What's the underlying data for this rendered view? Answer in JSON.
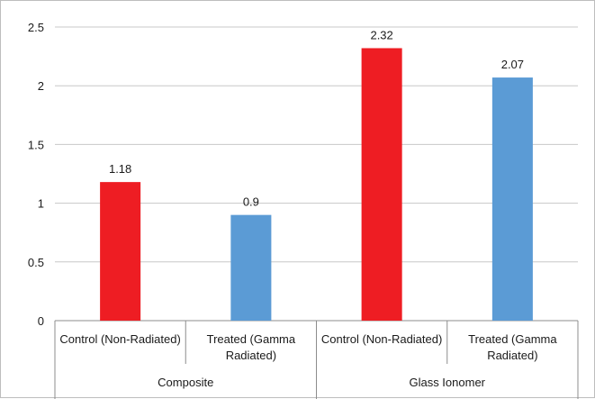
{
  "chart_data": {
    "type": "bar",
    "title": "",
    "xlabel": "",
    "ylabel": "",
    "ylim": [
      0,
      2.5
    ],
    "yticks": [
      "0",
      "0.5",
      "1",
      "1.5",
      "2",
      "2.5"
    ],
    "grid": true,
    "legend": "none",
    "groups": [
      {
        "name": "Composite",
        "bars": [
          {
            "category": "Control (Non-Radiated)",
            "lines": [
              "Control (Non-Radiated)"
            ],
            "value": 1.18,
            "label": "1.18",
            "color": "#ee1d23"
          },
          {
            "category": "Treated (Gamma Radiated)",
            "lines": [
              "Treated (Gamma",
              "Radiated)"
            ],
            "value": 0.9,
            "label": "0.9",
            "color": "#5b9bd5"
          }
        ]
      },
      {
        "name": "Glass Ionomer",
        "bars": [
          {
            "category": "Control (Non-Radiated)",
            "lines": [
              "Control (Non-Radiated)"
            ],
            "value": 2.32,
            "label": "2.32",
            "color": "#ee1d23"
          },
          {
            "category": "Treated (Gamma Radiated)",
            "lines": [
              "Treated (Gamma",
              "Radiated)"
            ],
            "value": 2.07,
            "label": "2.07",
            "color": "#5b9bd5"
          }
        ]
      }
    ]
  }
}
